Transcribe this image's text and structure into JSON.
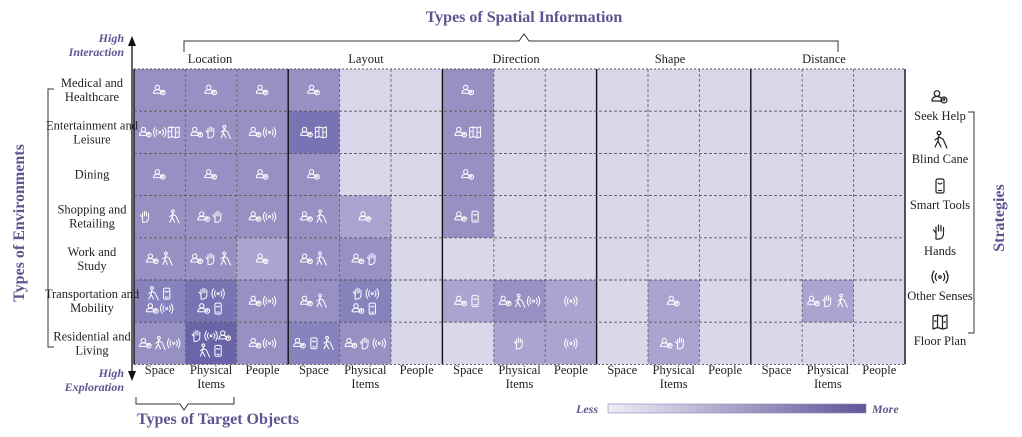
{
  "titles": {
    "top": "Types of Spatial Information",
    "left": "Types of Environments",
    "bottom": "Types of Target Objects",
    "right": "Strategies"
  },
  "axis": {
    "top_label": "High Interaction",
    "bottom_label": "High Exploration"
  },
  "legend": {
    "less": "Less",
    "more": "More"
  },
  "colors": {
    "level0": "#d9d8ea",
    "level1": "#aaa5d0",
    "level2": "#9791c3",
    "level3": "#8882bc",
    "level4": "#7a73b3",
    "level5": "#6b63a8"
  },
  "strategies": [
    {
      "label": "Seek Help",
      "icon": "seek-help-icon"
    },
    {
      "label": "Blind Cane",
      "icon": "blind-cane-icon"
    },
    {
      "label": "Smart Tools",
      "icon": "smart-tools-icon"
    },
    {
      "label": "Hands",
      "icon": "hands-icon"
    },
    {
      "label": "Other Senses",
      "icon": "other-senses-icon"
    },
    {
      "label": "Floor Plan",
      "icon": "floor-plan-icon"
    }
  ],
  "chart_data": {
    "type": "heatmap",
    "spatial_info_types": [
      "Location",
      "Layout",
      "Direction",
      "Shape",
      "Distance"
    ],
    "target_object_types": [
      "Space",
      "Physical Items",
      "People"
    ],
    "environments": [
      "Medical and Healthcare",
      "Entertainment and Leisure",
      "Dining",
      "Shopping and Retailing",
      "Work and Study",
      "Transportation and Mobility",
      "Residential and Living"
    ],
    "cells": [
      [
        [
          "H"
        ],
        [
          "H"
        ],
        [
          "H"
        ],
        [
          "H"
        ],
        [],
        [],
        [
          "H"
        ],
        [],
        [],
        [],
        [],
        [],
        [],
        [],
        []
      ],
      [
        [
          "H",
          "S",
          "F"
        ],
        [
          "H",
          "N",
          "C"
        ],
        [
          "H",
          "S"
        ],
        [
          "H",
          "F"
        ],
        [],
        [],
        [
          "H",
          "F"
        ],
        [],
        [],
        [],
        [],
        [],
        [],
        [],
        []
      ],
      [
        [
          "H"
        ],
        [
          "H"
        ],
        [
          "H"
        ],
        [
          "H"
        ],
        [],
        [],
        [
          "H"
        ],
        [],
        [],
        [],
        [],
        [],
        [],
        [],
        []
      ],
      [
        [
          "N",
          "D",
          "C"
        ],
        [
          "H",
          "N"
        ],
        [
          "H",
          "S"
        ],
        [
          "H",
          "C"
        ],
        [
          "H"
        ],
        [],
        [
          "H",
          "T"
        ],
        [],
        [],
        [],
        [],
        [],
        [],
        [],
        []
      ],
      [
        [
          "H",
          "C"
        ],
        [
          "H",
          "N",
          "C"
        ],
        [
          "H"
        ],
        [
          "H",
          "C"
        ],
        [
          "H",
          "N"
        ],
        [],
        [],
        [],
        [],
        [],
        [],
        [],
        [],
        [],
        []
      ],
      [
        [
          "C",
          "T",
          "H",
          "S"
        ],
        [
          "N",
          "S",
          "H",
          "T"
        ],
        [
          "H",
          "S"
        ],
        [
          "H",
          "C"
        ],
        [
          "N",
          "S",
          "H",
          "T"
        ],
        [],
        [
          "H",
          "T"
        ],
        [
          "H",
          "C",
          "S"
        ],
        [
          "S"
        ],
        [],
        [
          "H"
        ],
        [],
        [],
        [
          "H",
          "N",
          "C"
        ],
        []
      ],
      [
        [
          "H",
          "C",
          "S"
        ],
        [
          "N",
          "S",
          "H",
          "C",
          "T"
        ],
        [
          "H",
          "S"
        ],
        [
          "H",
          "T",
          "C"
        ],
        [
          "H",
          "N",
          "S"
        ],
        [],
        [],
        [
          "N"
        ],
        [
          "S"
        ],
        [],
        [
          "H",
          "N"
        ],
        [],
        [],
        [],
        []
      ]
    ],
    "cell_levels": [
      [
        2,
        2,
        2,
        2,
        0,
        0,
        2,
        0,
        0,
        0,
        0,
        0,
        0,
        0,
        0
      ],
      [
        2,
        2,
        2,
        4,
        0,
        0,
        2,
        0,
        0,
        0,
        0,
        0,
        0,
        0,
        0
      ],
      [
        2,
        2,
        2,
        2,
        0,
        0,
        2,
        0,
        0,
        0,
        0,
        0,
        0,
        0,
        0
      ],
      [
        2,
        2,
        2,
        2,
        1,
        0,
        2,
        0,
        0,
        0,
        0,
        0,
        0,
        0,
        0
      ],
      [
        2,
        2,
        1,
        2,
        2,
        0,
        0,
        0,
        0,
        0,
        0,
        0,
        0,
        0,
        0
      ],
      [
        3,
        4,
        2,
        2,
        3,
        0,
        1,
        2,
        1,
        0,
        1,
        0,
        0,
        1,
        0
      ],
      [
        2,
        5,
        2,
        3,
        2,
        0,
        0,
        1,
        1,
        0,
        1,
        0,
        0,
        0,
        0
      ]
    ],
    "legend_range": [
      "Less",
      "More"
    ]
  }
}
